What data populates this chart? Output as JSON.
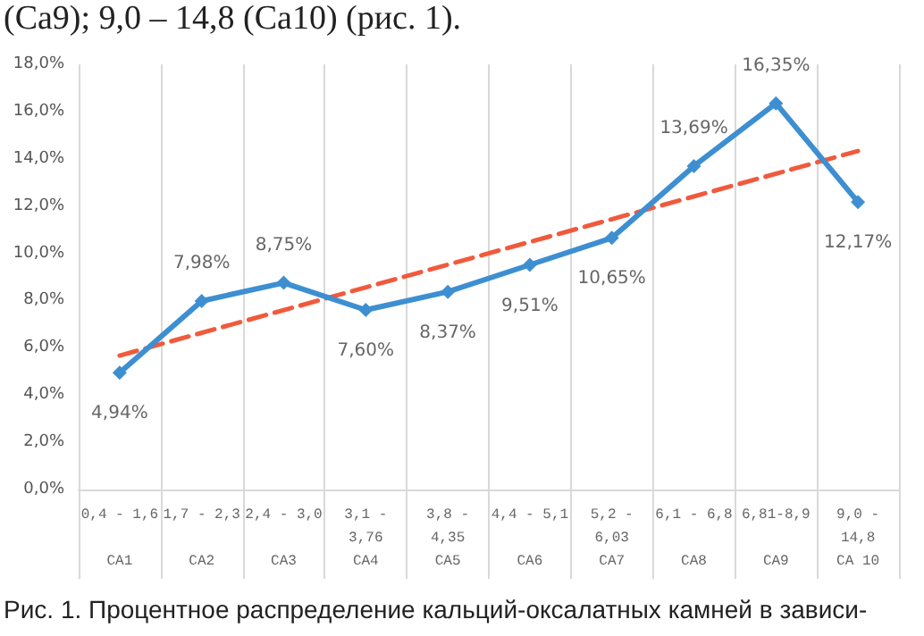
{
  "chart_data": {
    "type": "line",
    "categories": [
      "0,4 - 1,6\n\nCA1",
      "1,7 - 2,3\n\nCA2",
      "2,4 - 3,0\n\nCA3",
      "3,1 -\n3,76\nCA4",
      "3,8 -\n4,35\nCA5",
      "4,4 - 5,1\n\nCA6",
      "5,2 -\n6,03\nCA7",
      "6,1 - 6,8\n\nCA8",
      "6,81-8,9\n\nCA9",
      "9,0 -\n14,8\nCA 10"
    ],
    "series": [
      {
        "color": "#3d8fd1",
        "values": [
          4.94,
          7.98,
          8.75,
          7.6,
          8.37,
          9.51,
          10.65,
          13.69,
          16.35,
          12.17
        ],
        "value_labels": [
          "4,94%",
          "7,98%",
          "8,75%",
          "7,60%",
          "8,37%",
          "9,51%",
          "10,65%",
          "13,69%",
          "16,35%",
          "12,17%"
        ],
        "marker": "diamond",
        "line_style": "solid"
      },
      {
        "color": "#f05a3c",
        "x": [
          "0,4 - 1,6\n\nCA1",
          "9,0 -\n14,8\nCA 10"
        ],
        "values": [
          5.67,
          14.33
        ],
        "marker": "none",
        "line_style": "dashed"
      }
    ],
    "ylim": [
      0,
      18
    ],
    "yticks": [
      {
        "value": 0,
        "label": "0,0%"
      },
      {
        "value": 2,
        "label": "2,0%"
      },
      {
        "value": 4,
        "label": "4,0%"
      },
      {
        "value": 6,
        "label": "6,0%"
      },
      {
        "value": 8,
        "label": "8,0%"
      },
      {
        "value": 10,
        "label": "10,0%"
      },
      {
        "value": 12,
        "label": "12,0%"
      },
      {
        "value": 14,
        "label": "14,0%"
      },
      {
        "value": 16,
        "label": "16,0%"
      },
      {
        "value": 18,
        "label": "18,0%"
      }
    ],
    "grid": "x",
    "annotations": [
      "(Ca9); 9,0 – 14,8 (Ca10) (рис. 1).",
      "Рис. 1. Процентное распределение кальций-оксалатных камней в зависи-"
    ]
  }
}
